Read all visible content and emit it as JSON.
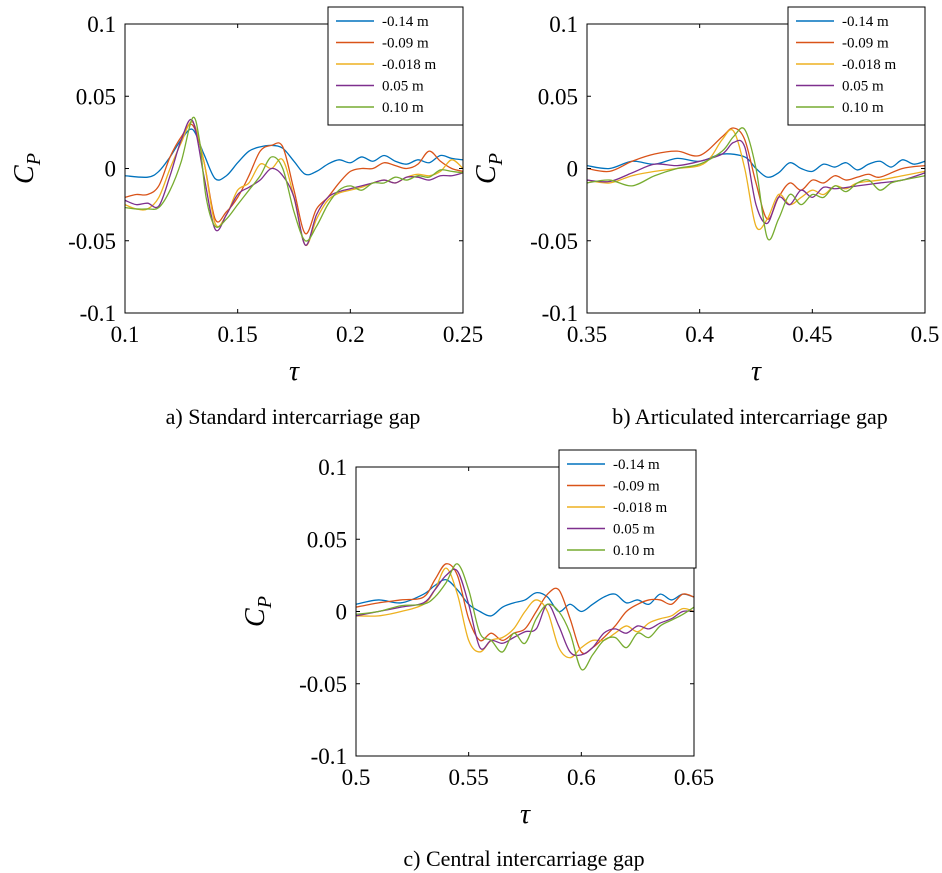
{
  "figure": {
    "charts": [
      {
        "caption": "a) Standard intercarriage gap"
      },
      {
        "caption": "b) Articulated intercarriage gap"
      },
      {
        "caption": "c) Central intercarriage gap"
      }
    ]
  },
  "chart_data": [
    {
      "type": "line",
      "caption": "a) Standard intercarriage gap",
      "xlabel": "τ",
      "ylabel": "C_P",
      "xlim": [
        0.1,
        0.25
      ],
      "ylim": [
        -0.1,
        0.1
      ],
      "xticks": [
        "0.1",
        "0.15",
        "0.2",
        "0.25"
      ],
      "yticks": [
        "0.1",
        "0.05",
        "0",
        "-0.05",
        "-0.1"
      ],
      "legend_position": "top-right",
      "grid": false,
      "series": [
        {
          "name": "-0.14 m",
          "color": "#0072BD",
          "x": [
            0.1,
            0.11,
            0.115,
            0.12,
            0.125,
            0.13,
            0.135,
            0.14,
            0.145,
            0.15,
            0.155,
            0.16,
            0.165,
            0.17,
            0.175,
            0.18,
            0.185,
            0.19,
            0.195,
            0.2,
            0.205,
            0.21,
            0.215,
            0.22,
            0.225,
            0.23,
            0.235,
            0.24,
            0.245,
            0.25
          ],
          "y": [
            -0.005,
            -0.006,
            -0.002,
            0.008,
            0.02,
            0.027,
            0.01,
            -0.007,
            -0.005,
            0.004,
            0.012,
            0.015,
            0.016,
            0.014,
            0.005,
            -0.004,
            -0.002,
            0.003,
            0.006,
            0.004,
            0.008,
            0.005,
            0.009,
            0.005,
            0.003,
            0.006,
            0.004,
            0.009,
            0.007,
            0.006
          ]
        },
        {
          "name": "-0.09 m",
          "color": "#D95319",
          "x": [
            0.1,
            0.105,
            0.11,
            0.115,
            0.12,
            0.125,
            0.13,
            0.135,
            0.14,
            0.145,
            0.15,
            0.155,
            0.16,
            0.165,
            0.17,
            0.175,
            0.18,
            0.185,
            0.19,
            0.195,
            0.2,
            0.205,
            0.21,
            0.215,
            0.22,
            0.225,
            0.23,
            0.235,
            0.24,
            0.245,
            0.25
          ],
          "y": [
            -0.02,
            -0.018,
            -0.018,
            -0.012,
            0.008,
            0.022,
            0.03,
            0.005,
            -0.035,
            -0.03,
            -0.02,
            -0.005,
            0.012,
            0.016,
            0.015,
            -0.015,
            -0.045,
            -0.028,
            -0.02,
            -0.01,
            -0.002,
            0.0,
            0.0,
            0.004,
            0.002,
            0.0,
            0.003,
            0.012,
            0.005,
            0.0,
            -0.002
          ]
        },
        {
          "name": "-0.018 m",
          "color": "#EDB120",
          "x": [
            0.1,
            0.105,
            0.11,
            0.115,
            0.12,
            0.125,
            0.13,
            0.135,
            0.14,
            0.145,
            0.15,
            0.155,
            0.16,
            0.165,
            0.17,
            0.175,
            0.18,
            0.185,
            0.19,
            0.195,
            0.2,
            0.205,
            0.21,
            0.215,
            0.22,
            0.225,
            0.23,
            0.235,
            0.24,
            0.245,
            0.25
          ],
          "y": [
            -0.025,
            -0.028,
            -0.028,
            -0.02,
            0.0,
            0.018,
            0.032,
            0.005,
            -0.038,
            -0.032,
            -0.015,
            -0.01,
            0.003,
            0.0,
            0.006,
            -0.02,
            -0.053,
            -0.035,
            -0.022,
            -0.017,
            -0.015,
            -0.013,
            -0.01,
            -0.008,
            -0.01,
            -0.006,
            -0.004,
            -0.005,
            -0.002,
            0.006,
            0.0
          ]
        },
        {
          "name": "0.05 m",
          "color": "#7E2F8E",
          "x": [
            0.1,
            0.105,
            0.11,
            0.115,
            0.12,
            0.125,
            0.13,
            0.135,
            0.14,
            0.145,
            0.15,
            0.155,
            0.16,
            0.165,
            0.17,
            0.175,
            0.18,
            0.185,
            0.19,
            0.195,
            0.2,
            0.205,
            0.21,
            0.215,
            0.22,
            0.225,
            0.23,
            0.235,
            0.24,
            0.245,
            0.25
          ],
          "y": [
            -0.022,
            -0.025,
            -0.024,
            -0.026,
            -0.005,
            0.02,
            0.033,
            -0.005,
            -0.042,
            -0.032,
            -0.018,
            -0.013,
            -0.008,
            0.0,
            -0.005,
            -0.02,
            -0.053,
            -0.032,
            -0.02,
            -0.016,
            -0.014,
            -0.012,
            -0.01,
            -0.008,
            -0.01,
            -0.006,
            -0.006,
            -0.008,
            -0.005,
            -0.005,
            -0.003
          ]
        },
        {
          "name": "0.10 m",
          "color": "#77AC30",
          "x": [
            0.1,
            0.105,
            0.11,
            0.115,
            0.12,
            0.125,
            0.13,
            0.133,
            0.136,
            0.14,
            0.145,
            0.15,
            0.155,
            0.16,
            0.165,
            0.17,
            0.175,
            0.18,
            0.185,
            0.19,
            0.195,
            0.2,
            0.205,
            0.21,
            0.215,
            0.22,
            0.225,
            0.23,
            0.235,
            0.24,
            0.245,
            0.25
          ],
          "y": [
            -0.027,
            -0.028,
            -0.028,
            -0.027,
            -0.015,
            0.005,
            0.035,
            0.02,
            -0.02,
            -0.04,
            -0.035,
            -0.025,
            -0.015,
            -0.005,
            0.008,
            0.0,
            -0.03,
            -0.05,
            -0.04,
            -0.025,
            -0.015,
            -0.012,
            -0.015,
            -0.01,
            -0.01,
            -0.006,
            -0.008,
            -0.005,
            -0.006,
            -0.001,
            -0.002,
            -0.003
          ]
        }
      ]
    },
    {
      "type": "line",
      "caption": "b) Articulated intercarriage gap",
      "xlabel": "τ",
      "ylabel": "C_P",
      "xlim": [
        0.35,
        0.5
      ],
      "ylim": [
        -0.1,
        0.1
      ],
      "xticks": [
        "0.35",
        "0.4",
        "0.45",
        "0.5"
      ],
      "yticks": [
        "0.1",
        "0.05",
        "0",
        "-0.05",
        "-0.1"
      ],
      "legend_position": "top-right",
      "grid": false,
      "series": [
        {
          "name": "-0.14 m",
          "color": "#0072BD",
          "x": [
            0.35,
            0.36,
            0.37,
            0.38,
            0.39,
            0.4,
            0.41,
            0.42,
            0.425,
            0.43,
            0.435,
            0.44,
            0.445,
            0.45,
            0.455,
            0.46,
            0.465,
            0.47,
            0.475,
            0.48,
            0.485,
            0.49,
            0.495,
            0.5
          ],
          "y": [
            0.002,
            0.0,
            0.005,
            0.003,
            0.007,
            0.005,
            0.01,
            0.008,
            0.0,
            -0.006,
            -0.003,
            0.004,
            0.0,
            -0.002,
            0.003,
            0.001,
            0.004,
            -0.001,
            0.003,
            0.005,
            0.001,
            0.006,
            0.003,
            0.005
          ]
        },
        {
          "name": "-0.09 m",
          "color": "#D95319",
          "x": [
            0.35,
            0.36,
            0.37,
            0.38,
            0.39,
            0.4,
            0.41,
            0.415,
            0.42,
            0.425,
            0.43,
            0.435,
            0.44,
            0.445,
            0.45,
            0.455,
            0.46,
            0.465,
            0.47,
            0.475,
            0.48,
            0.49,
            0.5
          ],
          "y": [
            0.0,
            -0.002,
            0.005,
            0.01,
            0.012,
            0.009,
            0.022,
            0.028,
            0.02,
            -0.01,
            -0.035,
            -0.02,
            -0.01,
            -0.015,
            -0.008,
            -0.01,
            -0.005,
            -0.008,
            -0.006,
            -0.004,
            -0.006,
            0.0,
            0.002
          ]
        },
        {
          "name": "-0.018 m",
          "color": "#EDB120",
          "x": [
            0.35,
            0.36,
            0.37,
            0.38,
            0.39,
            0.4,
            0.405,
            0.41,
            0.415,
            0.42,
            0.425,
            0.43,
            0.435,
            0.44,
            0.445,
            0.45,
            0.455,
            0.46,
            0.465,
            0.47,
            0.48,
            0.49,
            0.5
          ],
          "y": [
            -0.008,
            -0.01,
            -0.005,
            -0.002,
            0.0,
            0.002,
            0.008,
            0.02,
            0.026,
            0.0,
            -0.04,
            -0.035,
            -0.018,
            -0.025,
            -0.02,
            -0.015,
            -0.018,
            -0.012,
            -0.014,
            -0.01,
            -0.008,
            -0.005,
            -0.002
          ]
        },
        {
          "name": "0.05 m",
          "color": "#7E2F8E",
          "x": [
            0.35,
            0.36,
            0.37,
            0.38,
            0.39,
            0.4,
            0.41,
            0.415,
            0.42,
            0.425,
            0.43,
            0.435,
            0.44,
            0.445,
            0.45,
            0.455,
            0.46,
            0.47,
            0.48,
            0.49,
            0.5
          ],
          "y": [
            -0.008,
            -0.009,
            -0.003,
            0.003,
            0.002,
            0.005,
            0.01,
            0.018,
            0.015,
            -0.025,
            -0.038,
            -0.02,
            -0.025,
            -0.015,
            -0.02,
            -0.013,
            -0.014,
            -0.012,
            -0.01,
            -0.008,
            -0.003
          ]
        },
        {
          "name": "0.10 m",
          "color": "#77AC30",
          "x": [
            0.35,
            0.36,
            0.37,
            0.38,
            0.39,
            0.4,
            0.41,
            0.415,
            0.42,
            0.425,
            0.43,
            0.435,
            0.44,
            0.445,
            0.45,
            0.455,
            0.46,
            0.465,
            0.47,
            0.475,
            0.48,
            0.485,
            0.49,
            0.5
          ],
          "y": [
            -0.01,
            -0.008,
            -0.012,
            -0.005,
            0.0,
            0.003,
            0.012,
            0.022,
            0.027,
            0.0,
            -0.048,
            -0.035,
            -0.018,
            -0.025,
            -0.018,
            -0.02,
            -0.012,
            -0.016,
            -0.01,
            -0.008,
            -0.015,
            -0.01,
            -0.008,
            -0.005
          ]
        }
      ]
    },
    {
      "type": "line",
      "caption": "c) Central intercarriage gap",
      "xlabel": "τ",
      "ylabel": "C_P",
      "xlim": [
        0.5,
        0.65
      ],
      "ylim": [
        -0.1,
        0.1
      ],
      "xticks": [
        "0.5",
        "0.55",
        "0.6",
        "0.65"
      ],
      "yticks": [
        "0.1",
        "0.05",
        "0",
        "-0.05",
        "-0.1"
      ],
      "legend_position": "top-right",
      "grid": false,
      "series": [
        {
          "name": "-0.14 m",
          "color": "#0072BD",
          "x": [
            0.5,
            0.51,
            0.52,
            0.53,
            0.535,
            0.54,
            0.545,
            0.55,
            0.555,
            0.56,
            0.565,
            0.57,
            0.575,
            0.58,
            0.585,
            0.59,
            0.595,
            0.6,
            0.605,
            0.61,
            0.615,
            0.62,
            0.625,
            0.63,
            0.635,
            0.64,
            0.645,
            0.65
          ],
          "y": [
            0.005,
            0.008,
            0.006,
            0.012,
            0.018,
            0.022,
            0.015,
            0.005,
            0.0,
            -0.003,
            0.003,
            0.006,
            0.008,
            0.013,
            0.01,
            0.0,
            0.005,
            0.0,
            0.005,
            0.01,
            0.012,
            0.006,
            0.008,
            0.005,
            0.012,
            0.008,
            0.012,
            0.01
          ]
        },
        {
          "name": "-0.09 m",
          "color": "#D95319",
          "x": [
            0.5,
            0.51,
            0.52,
            0.53,
            0.535,
            0.54,
            0.545,
            0.55,
            0.555,
            0.56,
            0.565,
            0.57,
            0.575,
            0.58,
            0.585,
            0.59,
            0.595,
            0.6,
            0.605,
            0.61,
            0.615,
            0.62,
            0.625,
            0.63,
            0.635,
            0.64,
            0.645,
            0.65
          ],
          "y": [
            0.003,
            0.006,
            0.008,
            0.01,
            0.022,
            0.033,
            0.025,
            -0.005,
            -0.02,
            -0.015,
            -0.02,
            -0.015,
            -0.012,
            0.0,
            0.012,
            0.015,
            -0.005,
            -0.028,
            -0.025,
            -0.018,
            -0.01,
            0.0,
            0.005,
            0.008,
            0.008,
            0.005,
            0.012,
            0.01
          ]
        },
        {
          "name": "-0.018 m",
          "color": "#EDB120",
          "x": [
            0.5,
            0.51,
            0.52,
            0.53,
            0.535,
            0.54,
            0.545,
            0.55,
            0.555,
            0.56,
            0.565,
            0.57,
            0.575,
            0.58,
            0.585,
            0.59,
            0.595,
            0.6,
            0.605,
            0.61,
            0.615,
            0.62,
            0.625,
            0.63,
            0.635,
            0.64,
            0.645,
            0.65
          ],
          "y": [
            -0.003,
            -0.003,
            0.0,
            0.005,
            0.015,
            0.03,
            0.012,
            -0.02,
            -0.028,
            -0.02,
            -0.018,
            -0.012,
            0.0,
            0.008,
            0.0,
            -0.025,
            -0.032,
            -0.025,
            -0.02,
            -0.02,
            -0.015,
            -0.01,
            -0.014,
            -0.008,
            -0.005,
            -0.003,
            0.002,
            0.0
          ]
        },
        {
          "name": "0.05 m",
          "color": "#7E2F8E",
          "x": [
            0.5,
            0.51,
            0.52,
            0.53,
            0.535,
            0.54,
            0.545,
            0.55,
            0.555,
            0.56,
            0.565,
            0.57,
            0.575,
            0.58,
            0.585,
            0.59,
            0.595,
            0.6,
            0.605,
            0.61,
            0.615,
            0.62,
            0.625,
            0.63,
            0.635,
            0.64,
            0.645,
            0.65
          ],
          "y": [
            -0.003,
            0.0,
            0.003,
            0.006,
            0.015,
            0.025,
            0.028,
            0.005,
            -0.025,
            -0.02,
            -0.022,
            -0.018,
            -0.014,
            -0.012,
            0.005,
            -0.01,
            -0.028,
            -0.03,
            -0.025,
            -0.015,
            -0.012,
            -0.015,
            -0.01,
            -0.012,
            -0.008,
            -0.005,
            0.0,
            0.0
          ]
        },
        {
          "name": "0.10 m",
          "color": "#77AC30",
          "x": [
            0.5,
            0.51,
            0.52,
            0.53,
            0.535,
            0.54,
            0.545,
            0.55,
            0.555,
            0.56,
            0.565,
            0.57,
            0.575,
            0.58,
            0.585,
            0.59,
            0.595,
            0.6,
            0.605,
            0.61,
            0.615,
            0.62,
            0.625,
            0.63,
            0.635,
            0.64,
            0.645,
            0.65
          ],
          "y": [
            -0.002,
            0.0,
            0.004,
            0.005,
            0.01,
            0.02,
            0.033,
            0.015,
            -0.015,
            -0.02,
            -0.028,
            -0.015,
            -0.022,
            -0.005,
            0.005,
            0.0,
            -0.015,
            -0.04,
            -0.03,
            -0.02,
            -0.018,
            -0.025,
            -0.015,
            -0.018,
            -0.01,
            -0.006,
            -0.002,
            0.003
          ]
        }
      ]
    }
  ]
}
